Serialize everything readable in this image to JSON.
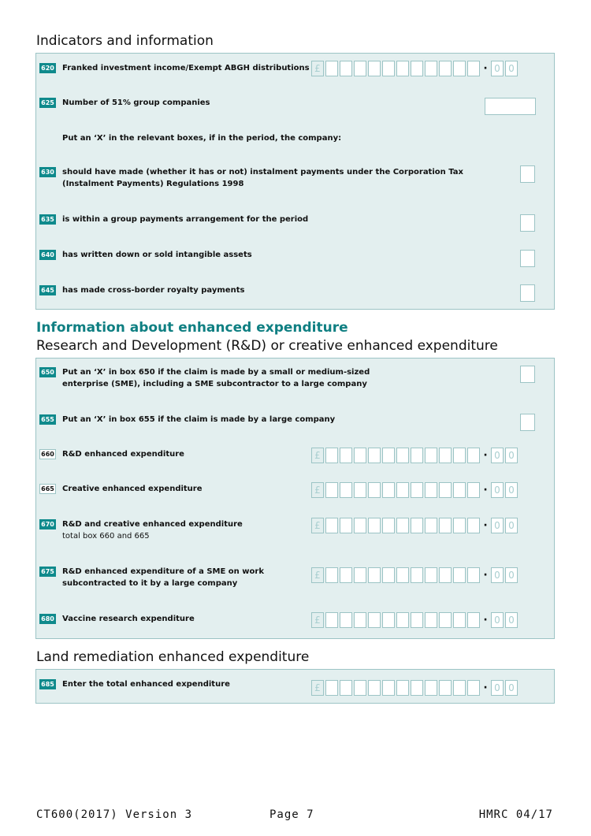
{
  "section1": {
    "title": "Indicators and information",
    "rows": [
      {
        "num": "620",
        "label": "Franked investment income/Exempt ABGH distributions",
        "type": "money"
      },
      {
        "num": "625",
        "label": "Number of 51% group companies",
        "type": "text"
      },
      {
        "instruction": "Put an ‘X’ in the relevant boxes, if in the period, the company:"
      },
      {
        "num": "630",
        "label": "should have made (whether it has or not) instalment payments under the Corporation Tax",
        "label2": "(Instalment Payments) Regulations 1998",
        "type": "x"
      },
      {
        "num": "635",
        "label": "is within a group payments arrangement for the period",
        "type": "x"
      },
      {
        "num": "640",
        "label": "has written down or sold intangible assets",
        "type": "x"
      },
      {
        "num": "645",
        "label": "has made cross-border royalty payments",
        "type": "x"
      }
    ]
  },
  "section2": {
    "title": "Information about enhanced expenditure",
    "subtitle": "Research and Development (R&D) or creative enhanced expenditure",
    "rows": [
      {
        "num": "650",
        "label": "Put an ‘X’ in box 650 if the claim is made by a small or medium-sized",
        "label2": "enterprise (SME), including a SME subcontractor to a large company",
        "type": "x"
      },
      {
        "num": "655",
        "label": "Put an ‘X’ in box 655 if the claim is made by a large company",
        "type": "x"
      },
      {
        "num": "660",
        "label": "R&D enhanced expenditure",
        "type": "money"
      },
      {
        "num": "665",
        "label": "Creative enhanced expenditure",
        "type": "money"
      },
      {
        "num": "670",
        "label": "R&D and creative enhanced expenditure",
        "sub": "total box 660 and 665",
        "type": "money"
      },
      {
        "num": "675",
        "label": "R&D enhanced expenditure of a SME on work",
        "label2": "subcontracted to it by a large company",
        "type": "money"
      },
      {
        "num": "680",
        "label": "Vaccine research expenditure",
        "type": "money"
      }
    ]
  },
  "section3": {
    "title": "Land remediation enhanced expenditure",
    "rows": [
      {
        "num": "685",
        "label": "Enter the total enhanced expenditure",
        "type": "money"
      }
    ]
  },
  "money_field": {
    "currency": "£",
    "pence": "0"
  },
  "footer": {
    "form": "CT600(2017) Version 3",
    "page": "Page 7",
    "issuer": "HMRC 04/17"
  }
}
